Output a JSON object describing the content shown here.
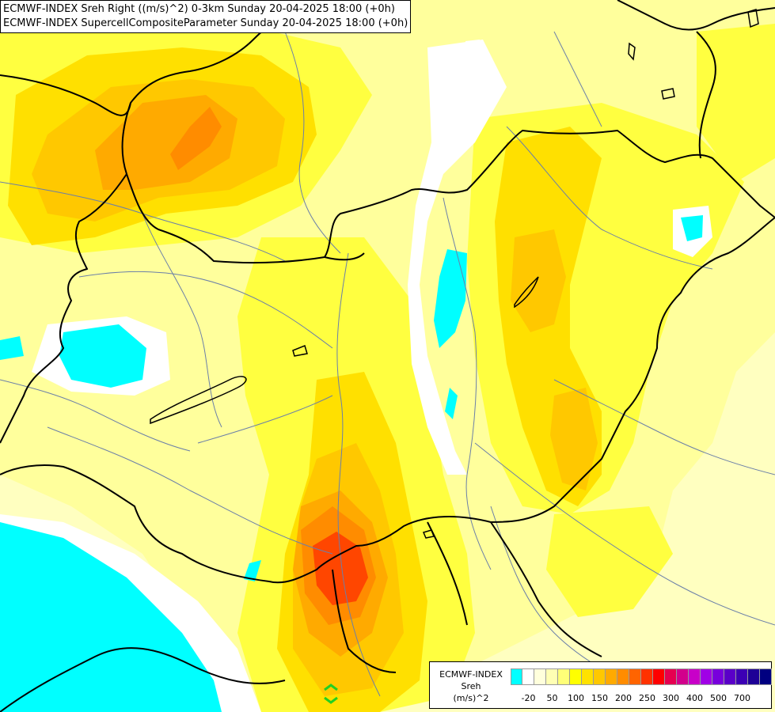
{
  "title_lines": [
    "ECMWF-INDEX Sreh Right ((m/s)^2) 0-3km Sunday 20-04-2025 18:00 (+0h)",
    "ECMWF-INDEX SupercellCompositeParameter Sunday 20-04-2025 18:00 (+0h)"
  ],
  "legend": {
    "title_lines": [
      "ECMWF-INDEX",
      "Sreh",
      "(m/s)^2"
    ],
    "colors": [
      "#00ffff",
      "#ffffff",
      "#ffffdc",
      "#ffffb4",
      "#ffff78",
      "#ffff00",
      "#ffe100",
      "#ffc800",
      "#ffaa00",
      "#ff8c00",
      "#ff6400",
      "#ff3200",
      "#ff0000",
      "#e60050",
      "#d2008c",
      "#c800c8",
      "#a000e6",
      "#7800dc",
      "#5a00c8",
      "#3c00b4",
      "#1e0096",
      "#000080"
    ],
    "ticks": [
      {
        "label": "-20",
        "swatch": 1
      },
      {
        "label": "50",
        "swatch": 3
      },
      {
        "label": "100",
        "swatch": 5
      },
      {
        "label": "150",
        "swatch": 7
      },
      {
        "label": "200",
        "swatch": 9
      },
      {
        "label": "250",
        "swatch": 11
      },
      {
        "label": "300",
        "swatch": 13
      },
      {
        "label": "400",
        "swatch": 15
      },
      {
        "label": "500",
        "swatch": 17
      },
      {
        "label": "700",
        "swatch": 19
      }
    ]
  },
  "map_colors": {
    "background": "#ffffc0",
    "light_yellow": "#ffff9c",
    "mid_yellow": "#ffff40",
    "yellow": "#ffff00",
    "gold": "#ffe000",
    "amber": "#ffc800",
    "orange": "#ffaa00",
    "dark_orange": "#ff8c00",
    "red_orange": "#ff4600",
    "cyan": "#00ffff",
    "white": "#ffffff",
    "border": "#000000",
    "river": "#6b7fa8",
    "marker": "#22d022"
  }
}
